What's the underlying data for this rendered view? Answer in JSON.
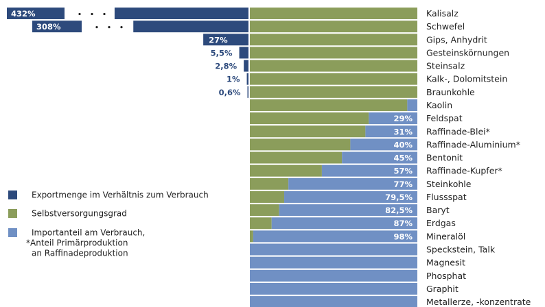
{
  "chart_data": {
    "type": "bar",
    "categories": [
      "Kalisalz",
      "Schwefel",
      "Gips, Anhydrit",
      "Gesteinskörnungen",
      "Steinsalz",
      "Kalk-, Dolomitstein",
      "Braunkohle",
      "Kaolin",
      "Feldspat",
      "Raffinade-Blei*",
      "Raffinade-Aluminium*",
      "Bentonit",
      "Raffinade-Kupfer*",
      "Steinkohle",
      "Flussspat",
      "Baryt",
      "Erdgas",
      "Mineralöl",
      "Speckstein, Talk",
      "Magnesit",
      "Phosphat",
      "Graphit",
      "Metallerze, -konzentrate"
    ],
    "series": [
      {
        "name": "Exportmenge im Verhältnis zum Verbrauch",
        "color": "#2d4a7c",
        "values": [
          432,
          308,
          27,
          5.5,
          2.8,
          1,
          0.6,
          null,
          null,
          null,
          null,
          null,
          null,
          null,
          null,
          null,
          null,
          null,
          null,
          null,
          null,
          null,
          null
        ],
        "value_labels": [
          "432%",
          "308%",
          "27%",
          "5,5%",
          "2,8%",
          "1%",
          "0,6%",
          null,
          null,
          null,
          null,
          null,
          null,
          null,
          null,
          null,
          null,
          null,
          null,
          null,
          null,
          null,
          null
        ]
      },
      {
        "name": "Selbstversorgungsgrad",
        "color": "#8b9d5b",
        "values": [
          100,
          100,
          100,
          100,
          100,
          100,
          100,
          94,
          71,
          69,
          60,
          55,
          43,
          23,
          20.5,
          17.5,
          13,
          2,
          null,
          null,
          null,
          null,
          null
        ]
      },
      {
        "name": "Importanteil am Verbrauch,",
        "color": "#7090c4",
        "values": [
          null,
          null,
          null,
          null,
          null,
          null,
          null,
          6,
          29,
          31,
          40,
          45,
          57,
          77,
          79.5,
          82.5,
          87,
          98,
          100,
          100,
          100,
          100,
          100
        ],
        "value_labels": [
          null,
          null,
          null,
          null,
          null,
          null,
          null,
          null,
          "29%",
          "31%",
          "40%",
          "45%",
          "57%",
          "77%",
          "79,5%",
          "82,5%",
          "87%",
          "98%",
          null,
          null,
          null,
          null,
          null
        ]
      }
    ],
    "note": [
      "*Anteil Primärproduktion",
      "an Raffinadeproduktion"
    ]
  }
}
